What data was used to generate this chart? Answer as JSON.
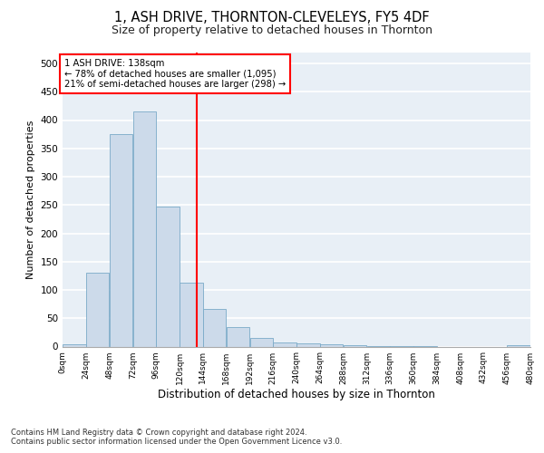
{
  "title": "1, ASH DRIVE, THORNTON-CLEVELEYS, FY5 4DF",
  "subtitle": "Size of property relative to detached houses in Thornton",
  "xlabel": "Distribution of detached houses by size in Thornton",
  "ylabel": "Number of detached properties",
  "bar_color": "#ccdaea",
  "bar_edge_color": "#7aaac8",
  "background_color": "#e8eff6",
  "grid_color": "#ffffff",
  "annotation_box_color": "#cc0000",
  "property_line_x": 138,
  "annotation_text_line1": "1 ASH DRIVE: 138sqm",
  "annotation_text_line2": "← 78% of detached houses are smaller (1,095)",
  "annotation_text_line3": "21% of semi-detached houses are larger (298) →",
  "footer_line1": "Contains HM Land Registry data © Crown copyright and database right 2024.",
  "footer_line2": "Contains public sector information licensed under the Open Government Licence v3.0.",
  "bin_edges": [
    0,
    24,
    48,
    72,
    96,
    120,
    144,
    168,
    192,
    216,
    240,
    264,
    288,
    312,
    336,
    360,
    384,
    408,
    432,
    456,
    480
  ],
  "bar_heights": [
    4,
    130,
    375,
    415,
    248,
    113,
    66,
    35,
    15,
    7,
    5,
    4,
    2,
    1,
    1,
    1,
    0,
    0,
    0,
    2
  ],
  "ylim": [
    0,
    520
  ],
  "xlim": [
    0,
    480
  ],
  "yticks": [
    0,
    50,
    100,
    150,
    200,
    250,
    300,
    350,
    400,
    450,
    500
  ]
}
